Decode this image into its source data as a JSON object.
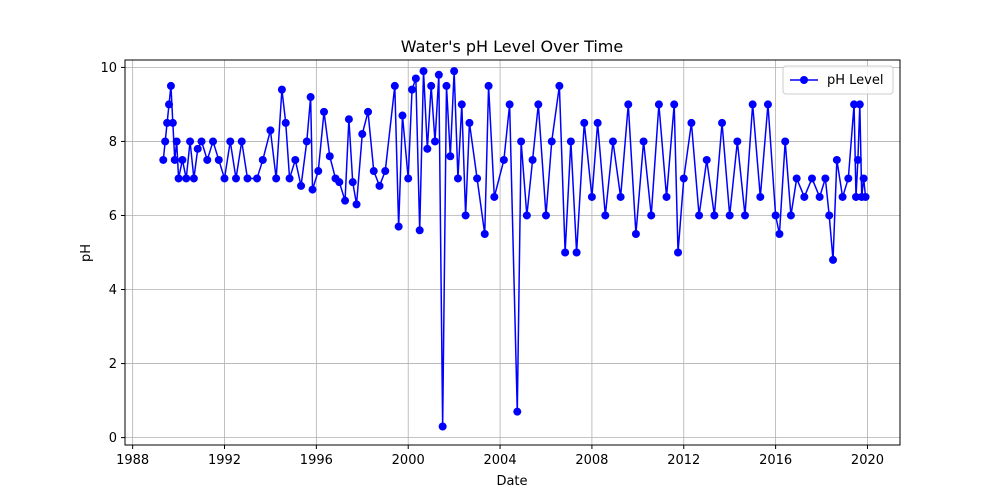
{
  "chart_data": {
    "type": "line",
    "title": "Water's pH Level Over Time",
    "xlabel": "Date",
    "ylabel": "pH",
    "xlim": [
      "1987-09-01",
      "2021-06-01"
    ],
    "ylim": [
      -0.2,
      10.2
    ],
    "x_ticks": [
      "1988",
      "1992",
      "1996",
      "2000",
      "2004",
      "2008",
      "2012",
      "2016",
      "2020"
    ],
    "y_ticks": [
      "0",
      "2",
      "4",
      "6",
      "8",
      "10"
    ],
    "grid": true,
    "legend": {
      "position": "top-right",
      "entries": [
        "pH Level"
      ]
    },
    "colors": {
      "series": "#0000ff"
    },
    "series": [
      {
        "name": "pH Level",
        "marker": "circle",
        "points": [
          [
            "1989-05-01",
            7.5
          ],
          [
            "1989-06-01",
            8.0
          ],
          [
            "1989-07-01",
            8.5
          ],
          [
            "1989-08-01",
            9.0
          ],
          [
            "1989-09-01",
            9.5
          ],
          [
            "1989-10-01",
            8.5
          ],
          [
            "1989-11-01",
            7.5
          ],
          [
            "1989-12-01",
            8.0
          ],
          [
            "1990-01-01",
            7.0
          ],
          [
            "1990-03-01",
            7.5
          ],
          [
            "1990-05-01",
            7.0
          ],
          [
            "1990-07-01",
            8.0
          ],
          [
            "1990-09-01",
            7.0
          ],
          [
            "1990-11-01",
            7.8
          ],
          [
            "1991-01-01",
            8.0
          ],
          [
            "1991-04-01",
            7.5
          ],
          [
            "1991-07-01",
            8.0
          ],
          [
            "1991-10-01",
            7.5
          ],
          [
            "1992-01-01",
            7.0
          ],
          [
            "1992-04-01",
            8.0
          ],
          [
            "1992-07-01",
            7.0
          ],
          [
            "1992-10-01",
            8.0
          ],
          [
            "1993-01-01",
            7.0
          ],
          [
            "1993-06-01",
            7.0
          ],
          [
            "1993-09-01",
            7.5
          ],
          [
            "1994-01-01",
            8.3
          ],
          [
            "1994-04-01",
            7.0
          ],
          [
            "1994-07-01",
            9.4
          ],
          [
            "1994-09-01",
            8.5
          ],
          [
            "1994-11-01",
            7.0
          ],
          [
            "1995-02-01",
            7.5
          ],
          [
            "1995-05-01",
            6.8
          ],
          [
            "1995-08-01",
            8.0
          ],
          [
            "1995-10-01",
            9.2
          ],
          [
            "1995-11-01",
            6.7
          ],
          [
            "1996-02-01",
            7.2
          ],
          [
            "1996-05-01",
            8.8
          ],
          [
            "1996-08-01",
            7.6
          ],
          [
            "1996-11-01",
            7.0
          ],
          [
            "1997-01-01",
            6.9
          ],
          [
            "1997-04-01",
            6.4
          ],
          [
            "1997-06-01",
            8.6
          ],
          [
            "1997-08-01",
            6.9
          ],
          [
            "1997-10-01",
            6.3
          ],
          [
            "1998-01-01",
            8.2
          ],
          [
            "1998-04-01",
            8.8
          ],
          [
            "1998-07-01",
            7.2
          ],
          [
            "1998-10-01",
            6.8
          ],
          [
            "1999-01-01",
            7.2
          ],
          [
            "1999-06-01",
            9.5
          ],
          [
            "1999-08-01",
            5.7
          ],
          [
            "1999-10-01",
            8.7
          ],
          [
            "2000-01-01",
            7.0
          ],
          [
            "2000-03-01",
            9.4
          ],
          [
            "2000-05-01",
            9.7
          ],
          [
            "2000-07-01",
            5.6
          ],
          [
            "2000-09-01",
            9.9
          ],
          [
            "2000-11-01",
            7.8
          ],
          [
            "2001-01-01",
            9.5
          ],
          [
            "2001-03-01",
            8.0
          ],
          [
            "2001-05-01",
            9.8
          ],
          [
            "2001-07-01",
            0.3
          ],
          [
            "2001-09-01",
            9.5
          ],
          [
            "2001-11-01",
            7.6
          ],
          [
            "2002-01-01",
            9.9
          ],
          [
            "2002-03-01",
            7.0
          ],
          [
            "2002-05-01",
            9.0
          ],
          [
            "2002-07-01",
            6.0
          ],
          [
            "2002-09-01",
            8.5
          ],
          [
            "2003-01-01",
            7.0
          ],
          [
            "2003-05-01",
            5.5
          ],
          [
            "2003-07-01",
            9.5
          ],
          [
            "2003-10-01",
            6.5
          ],
          [
            "2004-03-01",
            7.5
          ],
          [
            "2004-06-01",
            9.0
          ],
          [
            "2004-10-01",
            0.7
          ],
          [
            "2004-12-01",
            8.0
          ],
          [
            "2005-03-01",
            6.0
          ],
          [
            "2005-06-01",
            7.5
          ],
          [
            "2005-09-01",
            9.0
          ],
          [
            "2006-01-01",
            6.0
          ],
          [
            "2006-04-01",
            8.0
          ],
          [
            "2006-08-01",
            9.5
          ],
          [
            "2006-11-01",
            5.0
          ],
          [
            "2007-02-01",
            8.0
          ],
          [
            "2007-05-01",
            5.0
          ],
          [
            "2007-09-01",
            8.5
          ],
          [
            "2008-01-01",
            6.5
          ],
          [
            "2008-04-01",
            8.5
          ],
          [
            "2008-08-01",
            6.0
          ],
          [
            "2008-12-01",
            8.0
          ],
          [
            "2009-04-01",
            6.5
          ],
          [
            "2009-08-01",
            9.0
          ],
          [
            "2009-12-01",
            5.5
          ],
          [
            "2010-04-01",
            8.0
          ],
          [
            "2010-08-01",
            6.0
          ],
          [
            "2010-12-01",
            9.0
          ],
          [
            "2011-04-01",
            6.5
          ],
          [
            "2011-08-01",
            9.0
          ],
          [
            "2011-10-01",
            5.0
          ],
          [
            "2012-01-01",
            7.0
          ],
          [
            "2012-05-01",
            8.5
          ],
          [
            "2012-09-01",
            6.0
          ],
          [
            "2013-01-01",
            7.5
          ],
          [
            "2013-05-01",
            6.0
          ],
          [
            "2013-09-01",
            8.5
          ],
          [
            "2014-01-01",
            6.0
          ],
          [
            "2014-05-01",
            8.0
          ],
          [
            "2014-09-01",
            6.0
          ],
          [
            "2015-01-01",
            9.0
          ],
          [
            "2015-05-01",
            6.5
          ],
          [
            "2015-09-01",
            9.0
          ],
          [
            "2016-01-01",
            6.0
          ],
          [
            "2016-03-01",
            5.5
          ],
          [
            "2016-06-01",
            8.0
          ],
          [
            "2016-09-01",
            6.0
          ],
          [
            "2016-12-01",
            7.0
          ],
          [
            "2017-04-01",
            6.5
          ],
          [
            "2017-08-01",
            7.0
          ],
          [
            "2017-12-01",
            6.5
          ],
          [
            "2018-03-01",
            7.0
          ],
          [
            "2018-05-01",
            6.0
          ],
          [
            "2018-07-01",
            4.8
          ],
          [
            "2018-09-01",
            7.5
          ],
          [
            "2018-12-01",
            6.5
          ],
          [
            "2019-03-01",
            7.0
          ],
          [
            "2019-06-01",
            9.0
          ],
          [
            "2019-07-01",
            6.5
          ],
          [
            "2019-08-01",
            7.5
          ],
          [
            "2019-09-01",
            9.0
          ],
          [
            "2019-10-01",
            6.5
          ],
          [
            "2019-11-01",
            7.0
          ],
          [
            "2019-12-01",
            6.5
          ]
        ]
      }
    ]
  }
}
